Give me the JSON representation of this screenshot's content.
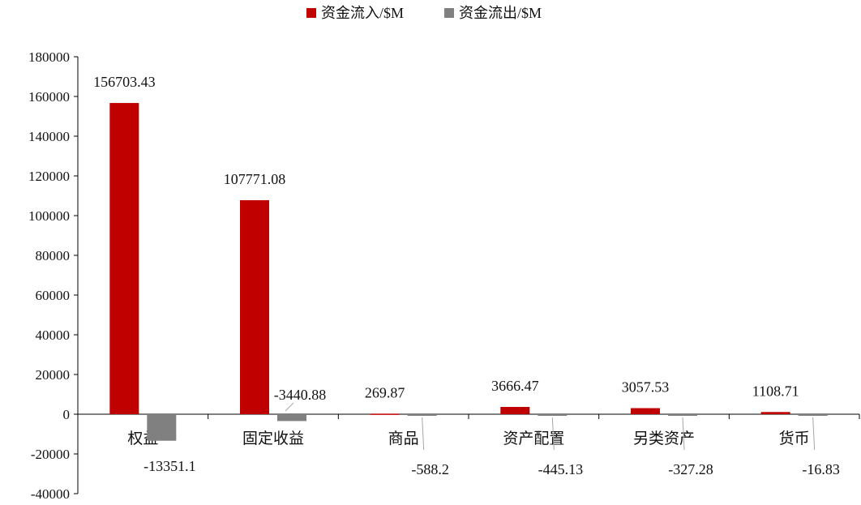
{
  "chart_data": {
    "type": "bar",
    "categories": [
      "权益",
      "固定收益",
      "商品",
      "资产配置",
      "另类资产",
      "货币"
    ],
    "series": [
      {
        "name": "资金流入/$M",
        "color": "#c00000",
        "values": [
          156703.43,
          107771.08,
          269.87,
          3666.47,
          3057.53,
          1108.71
        ],
        "labels": [
          "156703.43",
          "107771.08",
          "269.87",
          "3666.47",
          "3057.53",
          "1108.71"
        ]
      },
      {
        "name": "资金流出/$M",
        "color": "#808080",
        "values": [
          -13351.1,
          -3440.88,
          -588.2,
          -445.13,
          -327.28,
          -16.83
        ],
        "labels": [
          "-13351.1",
          "-3440.88",
          "-588.2",
          "-445.13",
          "-327.28",
          "-16.83"
        ]
      }
    ],
    "ylim": [
      -40000,
      180000
    ],
    "yticks": [
      "-40000",
      "-20000",
      "0",
      "20000",
      "40000",
      "60000",
      "80000",
      "100000",
      "120000",
      "140000",
      "160000",
      "180000"
    ],
    "legend_position": "top-center",
    "grid": false
  }
}
